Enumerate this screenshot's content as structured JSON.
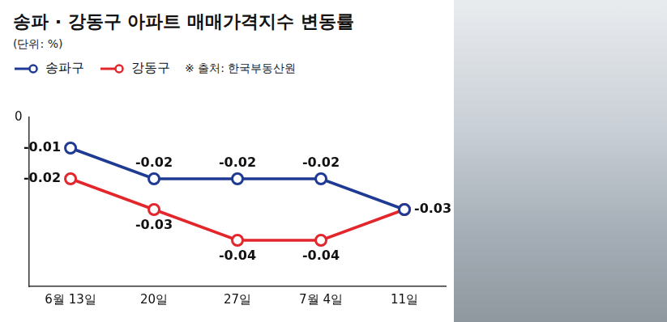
{
  "chart_data": {
    "type": "line",
    "title": "송파 · 강동구 아파트 매매가격지수 변동률",
    "subtitle": "(단위: %)",
    "source": "※ 출처: 한국부동산원",
    "categories": [
      "6월 13일",
      "20일",
      "27일",
      "7월 4일",
      "11일"
    ],
    "series": [
      {
        "name": "송파구",
        "color": "#1f3a93",
        "values": [
          -0.01,
          -0.02,
          -0.02,
          -0.02,
          -0.03
        ]
      },
      {
        "name": "강동구",
        "color": "#e3262b",
        "values": [
          -0.02,
          -0.03,
          -0.04,
          -0.04,
          -0.03
        ],
        "value_labels": [
          "-0.02",
          "-0.03",
          "-0.04",
          "-0.04",
          null
        ]
      }
    ],
    "ylim": [
      -0.055,
      0
    ],
    "yticks": [
      0
    ],
    "grid": false,
    "legend": "top-left",
    "data_labels": true,
    "marker": "circle"
  }
}
